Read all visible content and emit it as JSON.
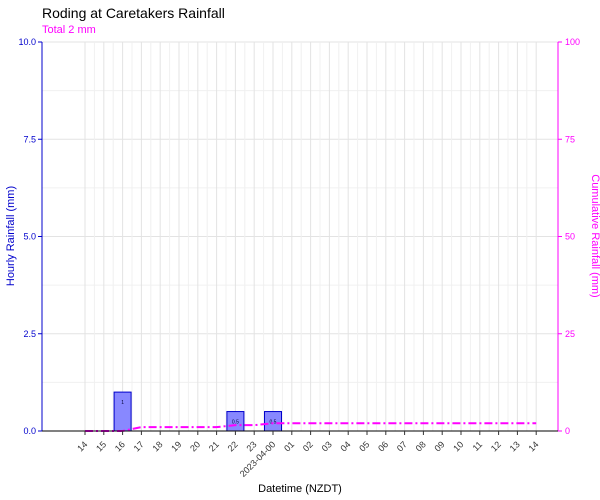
{
  "chart_data": {
    "type": "bar",
    "title": "Roding at Caretakers Rainfall",
    "subtitle": "Total 2 mm",
    "xlabel": "Datetime (NZDT)",
    "ylabel": "Hourly Rainfall (mm)",
    "ylabel_right": "Cumulative Rainfall (mm)",
    "ylim": [
      0,
      10
    ],
    "ylim_right": [
      0,
      100
    ],
    "yticks": [
      "0.0",
      "2.5",
      "5.0",
      "7.5",
      "10.0"
    ],
    "yticks_right": [
      "0",
      "25",
      "50",
      "75",
      "100"
    ],
    "categories": [
      "14",
      "15",
      "16",
      "17",
      "18",
      "19",
      "20",
      "21",
      "22",
      "23",
      "2023-04-00",
      "01",
      "02",
      "03",
      "04",
      "05",
      "06",
      "07",
      "08",
      "09",
      "10",
      "11",
      "12",
      "13",
      "14"
    ],
    "series": [
      {
        "values": [
          0,
          0,
          1,
          0,
          0,
          0,
          0,
          0,
          0.5,
          0,
          0.5,
          0,
          0,
          0,
          0,
          0,
          0,
          0,
          0,
          0,
          0,
          0,
          0,
          0,
          0
        ],
        "data_labels": [
          "",
          "",
          "1",
          "",
          "",
          "",
          "",
          "",
          "0.5",
          "",
          "0.5",
          "",
          "",
          "",
          "",
          "",
          "",
          "",
          "",
          "",
          "",
          "",
          "",
          "",
          ""
        ],
        "color": "#8888ff",
        "edge_color": "#0000cc"
      },
      {
        "type": "line",
        "axis": "right",
        "values": [
          0,
          0,
          0,
          1,
          1,
          1,
          1,
          1,
          1.5,
          1.5,
          2,
          2,
          2,
          2,
          2,
          2,
          2,
          2,
          2,
          2,
          2,
          2,
          2,
          2,
          2
        ],
        "color": "#ff00ff",
        "style": "dash-dot"
      }
    ],
    "grid": true,
    "legend": "none"
  }
}
